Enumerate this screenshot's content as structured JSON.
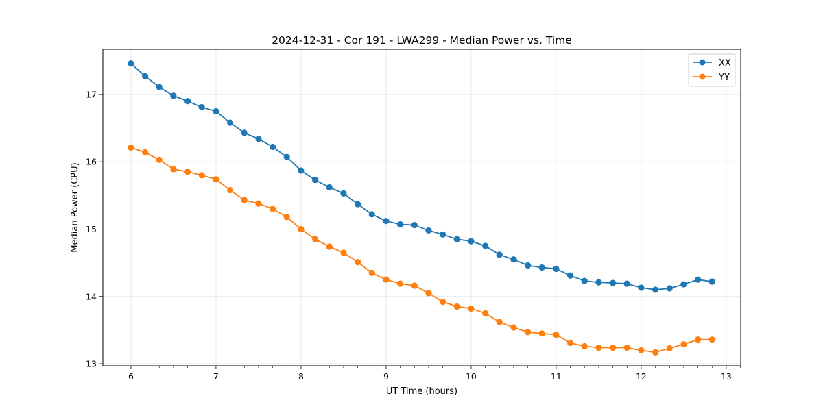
{
  "chart_data": {
    "type": "line",
    "title": "2024-12-31 - Cor 191 - LWA299 - Median Power vs. Time",
    "xlabel": "UT Time (hours)",
    "ylabel": "Median Power (CPU)",
    "xlim": [
      5.67,
      13.17
    ],
    "ylim": [
      12.97,
      17.67
    ],
    "xticks": [
      "6",
      "7",
      "8",
      "9",
      "10",
      "11",
      "12",
      "13"
    ],
    "yticks": [
      "13",
      "14",
      "15",
      "16",
      "17"
    ],
    "grid": true,
    "legend_position": "top-right",
    "x": [
      6.0,
      6.167,
      6.333,
      6.5,
      6.667,
      6.833,
      7.0,
      7.167,
      7.333,
      7.5,
      7.667,
      7.833,
      8.0,
      8.167,
      8.333,
      8.5,
      8.667,
      8.833,
      9.0,
      9.167,
      9.333,
      9.5,
      9.667,
      9.833,
      10.0,
      10.167,
      10.333,
      10.5,
      10.667,
      10.833,
      11.0,
      11.167,
      11.333,
      11.5,
      11.667,
      11.833,
      12.0,
      12.167,
      12.333,
      12.5,
      12.667,
      12.833
    ],
    "series": [
      {
        "name": "XX",
        "color": "#1f77b4",
        "values": [
          17.46,
          17.27,
          17.11,
          16.98,
          16.9,
          16.81,
          16.75,
          16.58,
          16.43,
          16.34,
          16.22,
          16.07,
          15.87,
          15.73,
          15.62,
          15.53,
          15.37,
          15.22,
          15.12,
          15.07,
          15.06,
          14.98,
          14.92,
          14.85,
          14.82,
          14.75,
          14.62,
          14.55,
          14.46,
          14.43,
          14.41,
          14.31,
          14.23,
          14.21,
          14.2,
          14.19,
          14.13,
          14.1,
          14.12,
          14.18,
          14.25,
          14.22
        ]
      },
      {
        "name": "YY",
        "color": "#ff7f0e",
        "values": [
          16.21,
          16.14,
          16.03,
          15.89,
          15.85,
          15.8,
          15.74,
          15.58,
          15.43,
          15.38,
          15.3,
          15.18,
          15.0,
          14.85,
          14.74,
          14.65,
          14.51,
          14.35,
          14.25,
          14.19,
          14.16,
          14.05,
          13.92,
          13.85,
          13.82,
          13.75,
          13.62,
          13.54,
          13.47,
          13.45,
          13.43,
          13.31,
          13.26,
          13.24,
          13.24,
          13.24,
          13.2,
          13.17,
          13.23,
          13.29,
          13.36,
          13.36
        ]
      }
    ]
  }
}
